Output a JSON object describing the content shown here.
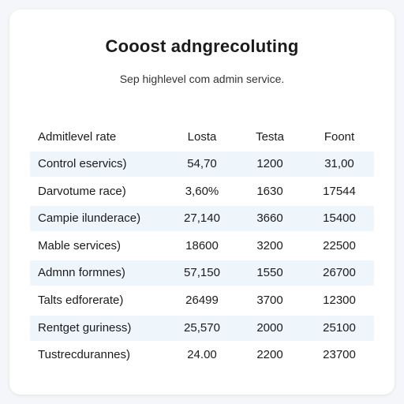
{
  "header": {
    "title": "Cooost adngrecoluting",
    "subtitle": "Sep highlevel com admin service."
  },
  "table": {
    "columns": [
      "Admitlevel rate",
      "Losta",
      "Testa",
      "Foont"
    ],
    "rows": [
      [
        "Control eservics)",
        "54,70",
        "1200",
        "31,00"
      ],
      [
        "Darvotume race)",
        "3,60%",
        "1630",
        "17544"
      ],
      [
        "Campie ilunderace)",
        "27,140",
        "3660",
        "15400"
      ],
      [
        "Mable services)",
        "18600",
        "3200",
        "22500"
      ],
      [
        "Admnn formnes)",
        "57,150",
        "1550",
        "26700"
      ],
      [
        "Talts edforerate)",
        "26499",
        "3700",
        "12300"
      ],
      [
        "Rentget guriness)",
        "25,570",
        "2000",
        "25100"
      ],
      [
        "Tustrecdurannes)",
        "24.00",
        "2200",
        "23700"
      ]
    ]
  }
}
